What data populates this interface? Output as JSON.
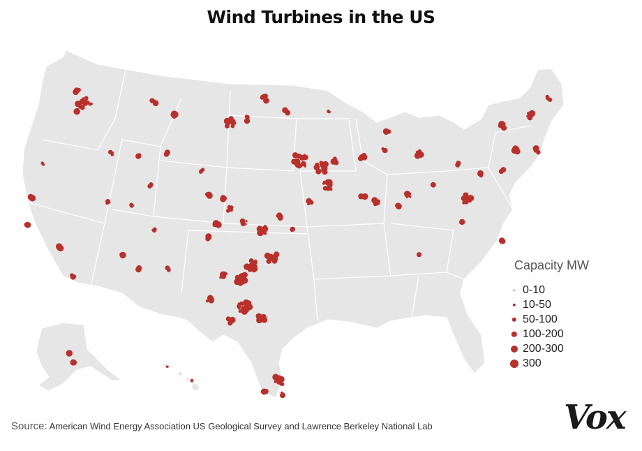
{
  "title": "Wind Turbines in the US",
  "legend": {
    "title": "Capacity MW",
    "items": [
      {
        "label": "0-10",
        "dot": 1.2
      },
      {
        "label": "10-50",
        "dot": 2.2
      },
      {
        "label": "50-100",
        "dot": 3.2
      },
      {
        "label": "100-200",
        "dot": 4.2
      },
      {
        "label": "200-300",
        "dot": 5.0
      },
      {
        "label": "300",
        "dot": 6.0
      }
    ]
  },
  "source_label": "Source:",
  "source_text": "American Wind Energy Association  US Geological Survey and Lawrence Berkeley National Lab",
  "brand": "Vox",
  "colors": {
    "land": "#e6e6e6",
    "border": "#ffffff",
    "dot": "#b8302b",
    "title": "#111111"
  }
}
